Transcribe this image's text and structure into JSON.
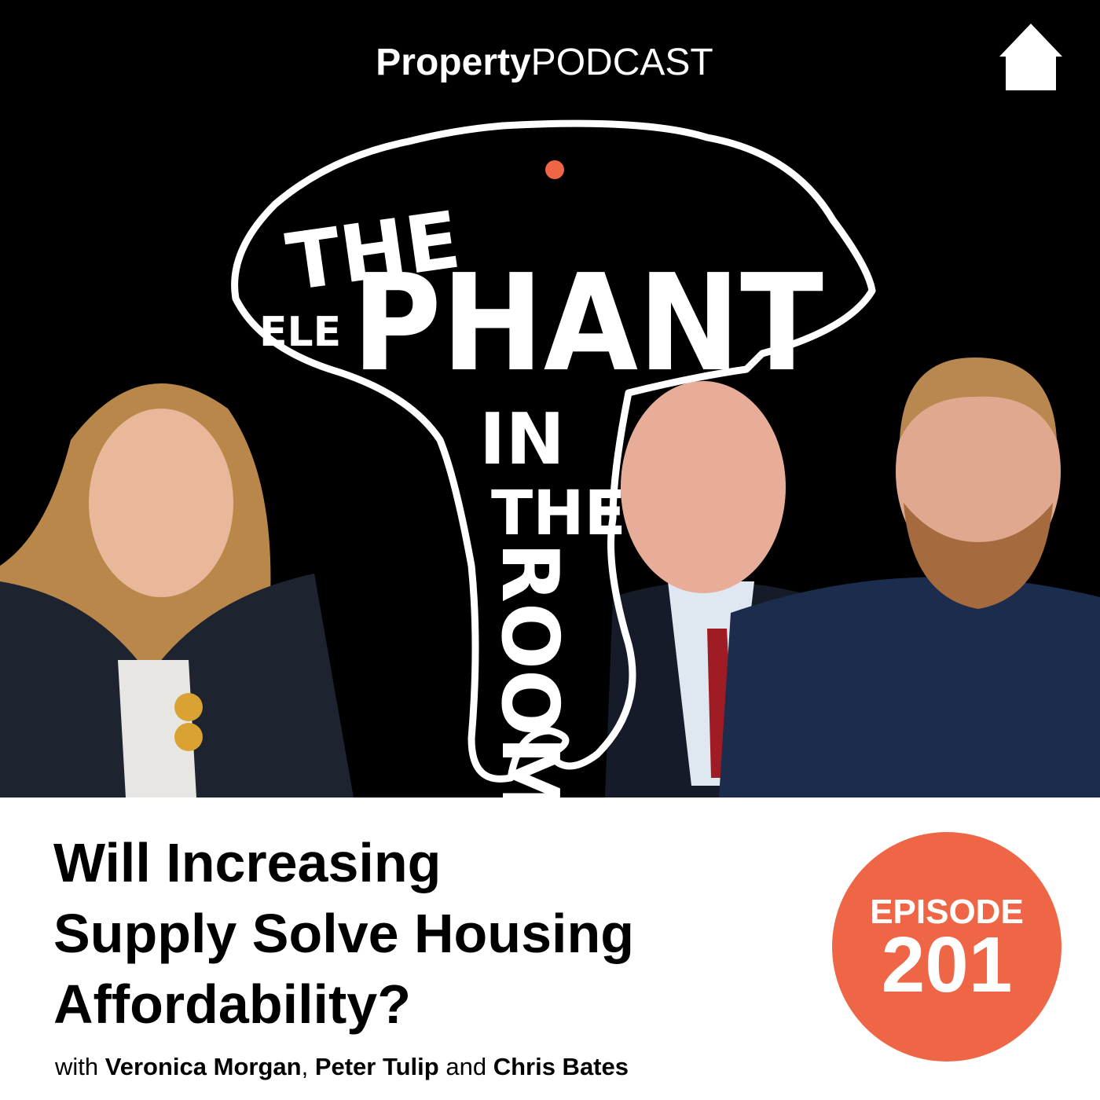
{
  "brand": {
    "bold": "Property",
    "light": "PODCAST"
  },
  "logo_words": {
    "the1": "THE",
    "ele": "ELE",
    "phant": "PHANT",
    "in": "IN",
    "the2": "THE",
    "room": "ROOM"
  },
  "title": {
    "lines": [
      "Will Increasing",
      "Supply Solve Housing",
      "Affordability?"
    ]
  },
  "guests": {
    "with": "with",
    "guest1": "Veronica Morgan",
    "sep": ",",
    "guest2": "Peter Tulip",
    "and": "and",
    "guest3": "Chris Bates"
  },
  "episode": {
    "label": "EPISODE",
    "number": "201"
  }
}
